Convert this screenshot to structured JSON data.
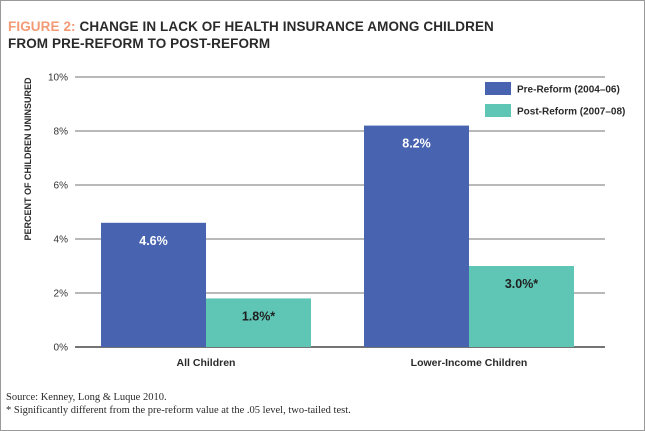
{
  "title": {
    "figure_label": "FIGURE 2:",
    "line1": "CHANGE IN LACK OF HEALTH INSURANCE AMONG CHILDREN",
    "line2": "FROM PRE-REFORM TO POST-REFORM"
  },
  "colors": {
    "pre": "#4863b0",
    "post": "#5fc6b6",
    "figure_label": "#f29a74",
    "axis": "#333333"
  },
  "footnotes": {
    "source": "Source: Kenney, Long & Luque 2010.",
    "note": "* Significantly different from the pre-reform value at the .05 level, two-tailed test."
  },
  "chart_data": {
    "type": "bar",
    "title": "CHANGE IN LACK OF HEALTH INSURANCE AMONG CHILDREN FROM PRE-REFORM TO POST-REFORM",
    "xlabel": "",
    "ylabel": "PERCENT OF CHILDREN UNINSURED",
    "ylim": [
      0,
      10
    ],
    "yticks": [
      0,
      2,
      4,
      6,
      8,
      10
    ],
    "ytick_labels": [
      "0%",
      "2%",
      "4%",
      "6%",
      "8%",
      "10%"
    ],
    "categories": [
      "All Children",
      "Lower-Income Children"
    ],
    "series": [
      {
        "name": "Pre-Reform (2004–06)",
        "values": [
          4.6,
          8.2
        ],
        "labels": [
          "4.6%",
          "8.2%"
        ]
      },
      {
        "name": "Post-Reform (2007–08)",
        "values": [
          1.8,
          3.0
        ],
        "labels": [
          "1.8%*",
          "3.0%*"
        ]
      }
    ],
    "legend": "top-right",
    "grid": true
  }
}
